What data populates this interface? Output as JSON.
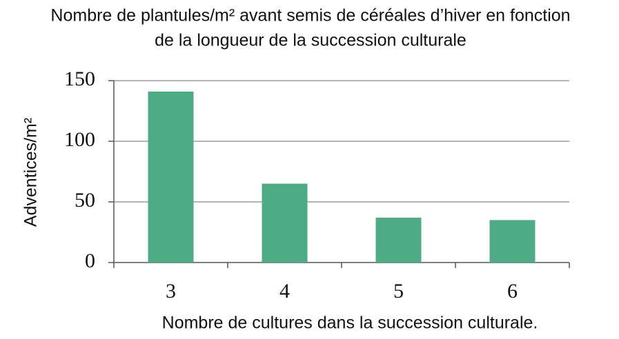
{
  "chart_data": {
    "type": "bar",
    "title": [
      "Nombre de plantules/m² avant semis de céréales d’hiver en fonction",
      "de la longueur de la succession culturale"
    ],
    "x_label": "Nombre de cultures dans la succession culturale.",
    "y_label": "Adventices/m²",
    "categories": [
      "3",
      "4",
      "5",
      "6"
    ],
    "values": [
      141,
      65,
      37,
      35
    ],
    "color": "#4dab85",
    "ylim": [
      0,
      150
    ],
    "yticks": [
      0,
      50,
      100,
      150
    ],
    "grid": true
  }
}
